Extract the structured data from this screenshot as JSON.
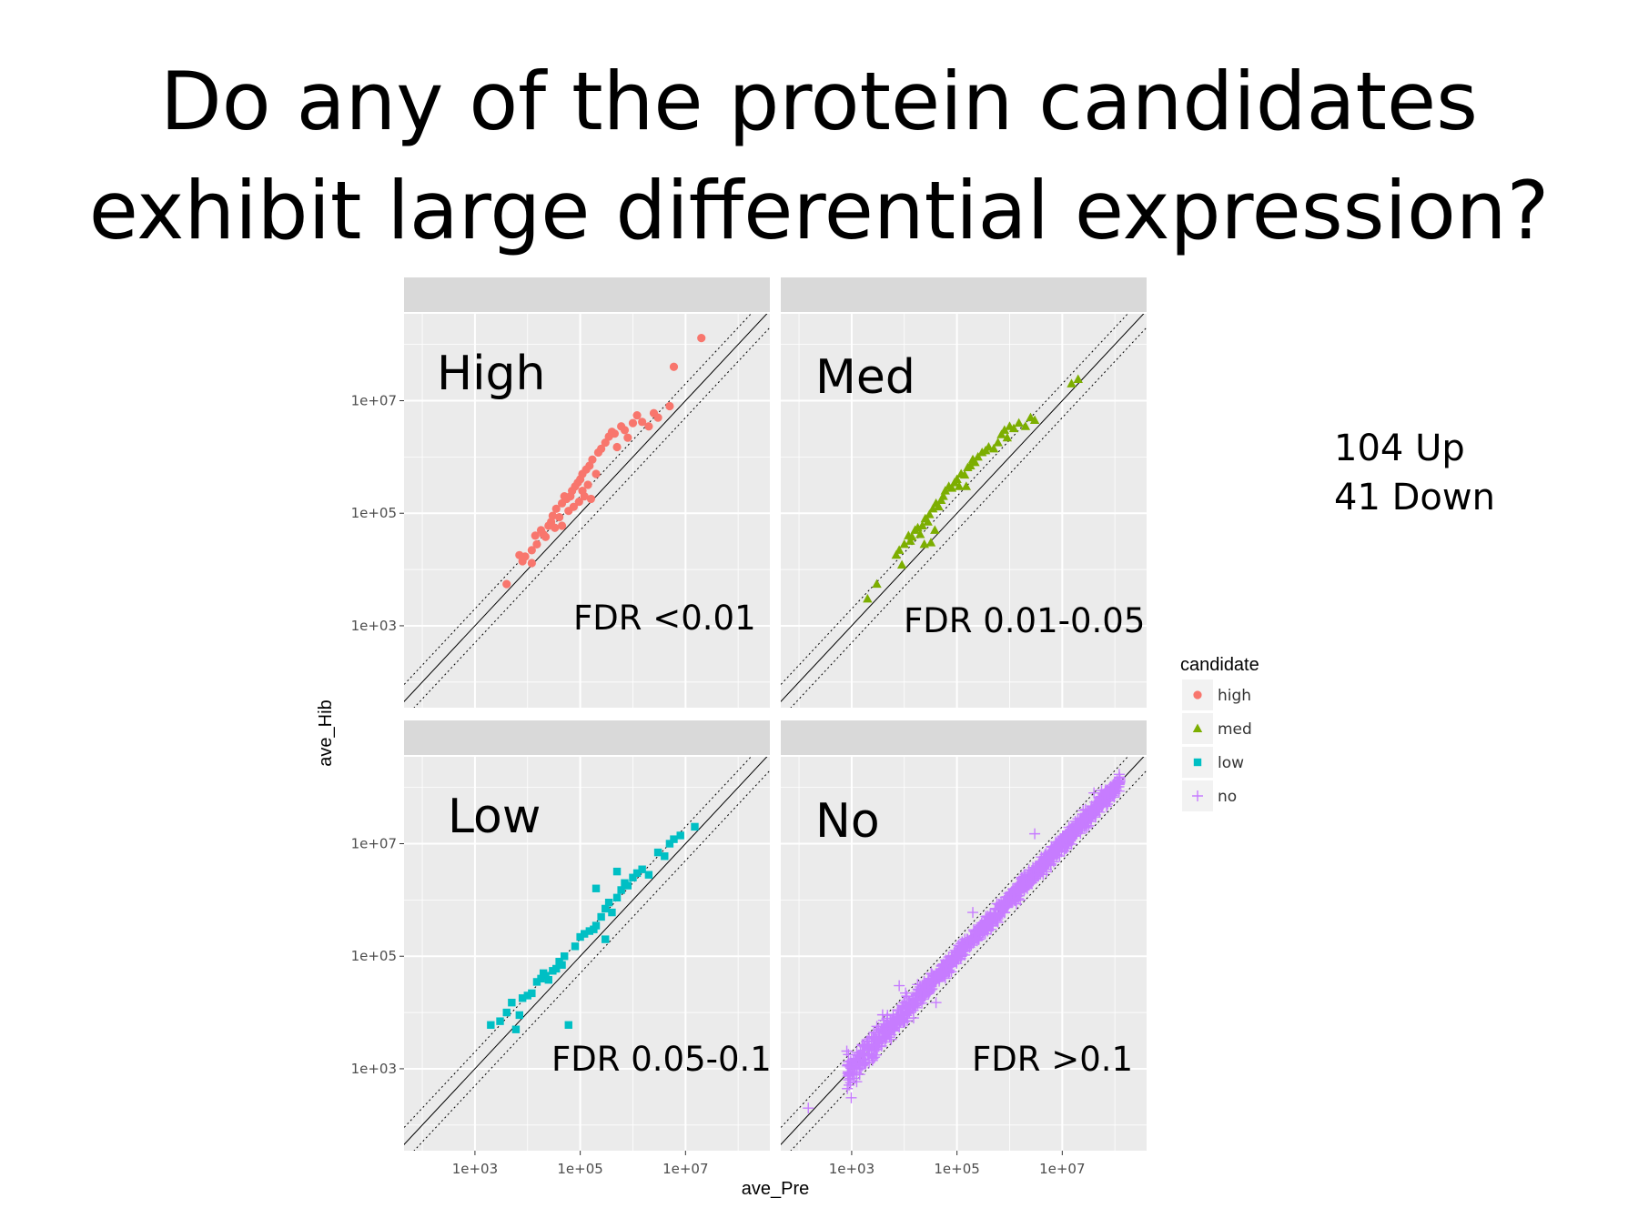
{
  "title_lines": [
    "Do any of the protein candidates",
    "exhibit large differential expression?"
  ],
  "summary": {
    "up": "104 Up",
    "down": "41 Down"
  },
  "colors": {
    "high": "#f8766d",
    "med": "#7cae00",
    "low": "#00bfc4",
    "no": "#c77cff",
    "panel_bg": "#ebebeb",
    "strip_bg": "#d9d9d9",
    "grid": "#ffffff"
  },
  "chart_data": {
    "type": "scatter",
    "xlabel": "ave_Pre",
    "ylabel": "ave_Hib",
    "x_scale": "log10",
    "y_scale": "log10",
    "xlim": [
      45,
      400000000
    ],
    "ylim": [
      35,
      350000000
    ],
    "x_ticks": [
      1000,
      100000,
      10000000
    ],
    "x_tick_labels": [
      "1e+03",
      "1e+05",
      "1e+07"
    ],
    "y_ticks": [
      1000,
      100000,
      10000000
    ],
    "y_tick_labels": [
      "1e+03",
      "1e+05",
      "1e+07"
    ],
    "reference_lines": {
      "identity": "y = x",
      "dotted_fold_change": [
        0.5,
        2
      ]
    },
    "legend": {
      "title": "candidate",
      "position": "right",
      "entries": [
        {
          "key": "high",
          "label": "high",
          "shape": "circle"
        },
        {
          "key": "med",
          "label": "med",
          "shape": "triangle"
        },
        {
          "key": "low",
          "label": "low",
          "shape": "square"
        },
        {
          "key": "no",
          "label": "no",
          "shape": "plus"
        }
      ]
    },
    "panels": [
      {
        "label": "High",
        "fdr": "FDR <0.01",
        "candidate": "high",
        "points": [
          [
            4000,
            5500
          ],
          [
            8000,
            14000
          ],
          [
            7000,
            18000
          ],
          [
            9000,
            17000
          ],
          [
            12000,
            22000
          ],
          [
            15000,
            28000
          ],
          [
            14000,
            40000
          ],
          [
            12000,
            13000
          ],
          [
            18000,
            50000
          ],
          [
            20000,
            42000
          ],
          [
            25000,
            60000
          ],
          [
            22000,
            38000
          ],
          [
            30000,
            90000
          ],
          [
            35000,
            120000
          ],
          [
            40000,
            85000
          ],
          [
            45000,
            150000
          ],
          [
            50000,
            200000
          ],
          [
            55000,
            180000
          ],
          [
            60000,
            110000
          ],
          [
            70000,
            250000
          ],
          [
            80000,
            300000
          ],
          [
            90000,
            350000
          ],
          [
            75000,
            130000
          ],
          [
            100000,
            400000
          ],
          [
            110000,
            500000
          ],
          [
            120000,
            200000
          ],
          [
            130000,
            600000
          ],
          [
            150000,
            700000
          ],
          [
            170000,
            900000
          ],
          [
            200000,
            500000
          ],
          [
            220000,
            1200000
          ],
          [
            250000,
            1400000
          ],
          [
            300000,
            1800000
          ],
          [
            350000,
            2300000
          ],
          [
            400000,
            2800000
          ],
          [
            450000,
            2600000
          ],
          [
            500000,
            1500000
          ],
          [
            600000,
            3500000
          ],
          [
            700000,
            3000000
          ],
          [
            800000,
            2200000
          ],
          [
            1000000,
            4000000
          ],
          [
            1200000,
            5500000
          ],
          [
            1500000,
            4200000
          ],
          [
            2000000,
            3500000
          ],
          [
            2500000,
            6000000
          ],
          [
            3000000,
            5000000
          ],
          [
            5000000,
            8000000
          ],
          [
            6000000,
            40000000
          ],
          [
            20000000,
            130000000
          ],
          [
            110000,
            250000
          ],
          [
            65000,
            200000
          ],
          [
            140000,
            320000
          ],
          [
            160000,
            180000
          ],
          [
            95000,
            160000
          ],
          [
            28000,
            70000
          ],
          [
            45000,
            60000
          ],
          [
            33000,
            55000
          ]
        ]
      },
      {
        "label": "Med",
        "fdr": "FDR 0.01-0.05",
        "candidate": "med",
        "points": [
          [
            2000,
            3000
          ],
          [
            3000,
            5500
          ],
          [
            7000,
            18000
          ],
          [
            8000,
            22000
          ],
          [
            10000,
            28000
          ],
          [
            12000,
            40000
          ],
          [
            14000,
            38000
          ],
          [
            16000,
            50000
          ],
          [
            18000,
            55000
          ],
          [
            20000,
            42000
          ],
          [
            22000,
            60000
          ],
          [
            25000,
            80000
          ],
          [
            28000,
            70000
          ],
          [
            30000,
            95000
          ],
          [
            35000,
            120000
          ],
          [
            40000,
            150000
          ],
          [
            45000,
            130000
          ],
          [
            50000,
            170000
          ],
          [
            55000,
            200000
          ],
          [
            60000,
            250000
          ],
          [
            70000,
            300000
          ],
          [
            80000,
            280000
          ],
          [
            90000,
            350000
          ],
          [
            100000,
            400000
          ],
          [
            110000,
            300000
          ],
          [
            120000,
            500000
          ],
          [
            140000,
            480000
          ],
          [
            160000,
            650000
          ],
          [
            180000,
            700000
          ],
          [
            200000,
            900000
          ],
          [
            220000,
            800000
          ],
          [
            250000,
            1000000
          ],
          [
            300000,
            1200000
          ],
          [
            350000,
            1300000
          ],
          [
            400000,
            1500000
          ],
          [
            500000,
            1400000
          ],
          [
            600000,
            1800000
          ],
          [
            700000,
            2500000
          ],
          [
            800000,
            3000000
          ],
          [
            900000,
            2200000
          ],
          [
            1000000,
            3500000
          ],
          [
            1200000,
            3200000
          ],
          [
            1500000,
            4000000
          ],
          [
            2000000,
            3500000
          ],
          [
            2500000,
            5000000
          ],
          [
            3000000,
            4500000
          ],
          [
            15000000,
            20000000
          ],
          [
            20000000,
            24000000
          ],
          [
            13000,
            32000
          ],
          [
            24000,
            28000
          ],
          [
            32000,
            30000
          ],
          [
            38000,
            50000
          ],
          [
            150000,
            300000
          ],
          [
            9000,
            12000
          ]
        ]
      },
      {
        "label": "Low",
        "fdr": "FDR 0.05-0.1",
        "candidate": "low",
        "points": [
          [
            2000,
            6000
          ],
          [
            3000,
            7000
          ],
          [
            4000,
            10000
          ],
          [
            5000,
            15000
          ],
          [
            6000,
            5000
          ],
          [
            7000,
            9000
          ],
          [
            8000,
            18000
          ],
          [
            10000,
            20000
          ],
          [
            12000,
            22000
          ],
          [
            15000,
            35000
          ],
          [
            18000,
            40000
          ],
          [
            20000,
            50000
          ],
          [
            22000,
            45000
          ],
          [
            25000,
            38000
          ],
          [
            30000,
            55000
          ],
          [
            35000,
            60000
          ],
          [
            40000,
            80000
          ],
          [
            45000,
            70000
          ],
          [
            50000,
            100000
          ],
          [
            60000,
            6000
          ],
          [
            80000,
            150000
          ],
          [
            100000,
            220000
          ],
          [
            120000,
            250000
          ],
          [
            150000,
            280000
          ],
          [
            180000,
            300000
          ],
          [
            200000,
            350000
          ],
          [
            250000,
            500000
          ],
          [
            300000,
            700000
          ],
          [
            350000,
            900000
          ],
          [
            400000,
            600000
          ],
          [
            500000,
            1100000
          ],
          [
            600000,
            1500000
          ],
          [
            700000,
            2000000
          ],
          [
            800000,
            1800000
          ],
          [
            1000000,
            2500000
          ],
          [
            1200000,
            3000000
          ],
          [
            1500000,
            3500000
          ],
          [
            2000000,
            2800000
          ],
          [
            3000000,
            7000000
          ],
          [
            4000000,
            6000000
          ],
          [
            5000000,
            10000000
          ],
          [
            6000000,
            12000000
          ],
          [
            8000000,
            14000000
          ],
          [
            15000000,
            20000000
          ],
          [
            200000,
            1600000
          ],
          [
            500000,
            3200000
          ],
          [
            300000,
            200000
          ]
        ]
      },
      {
        "label": "No",
        "fdr": "FDR >0.1",
        "candidate": "no",
        "points": []
      }
    ]
  }
}
